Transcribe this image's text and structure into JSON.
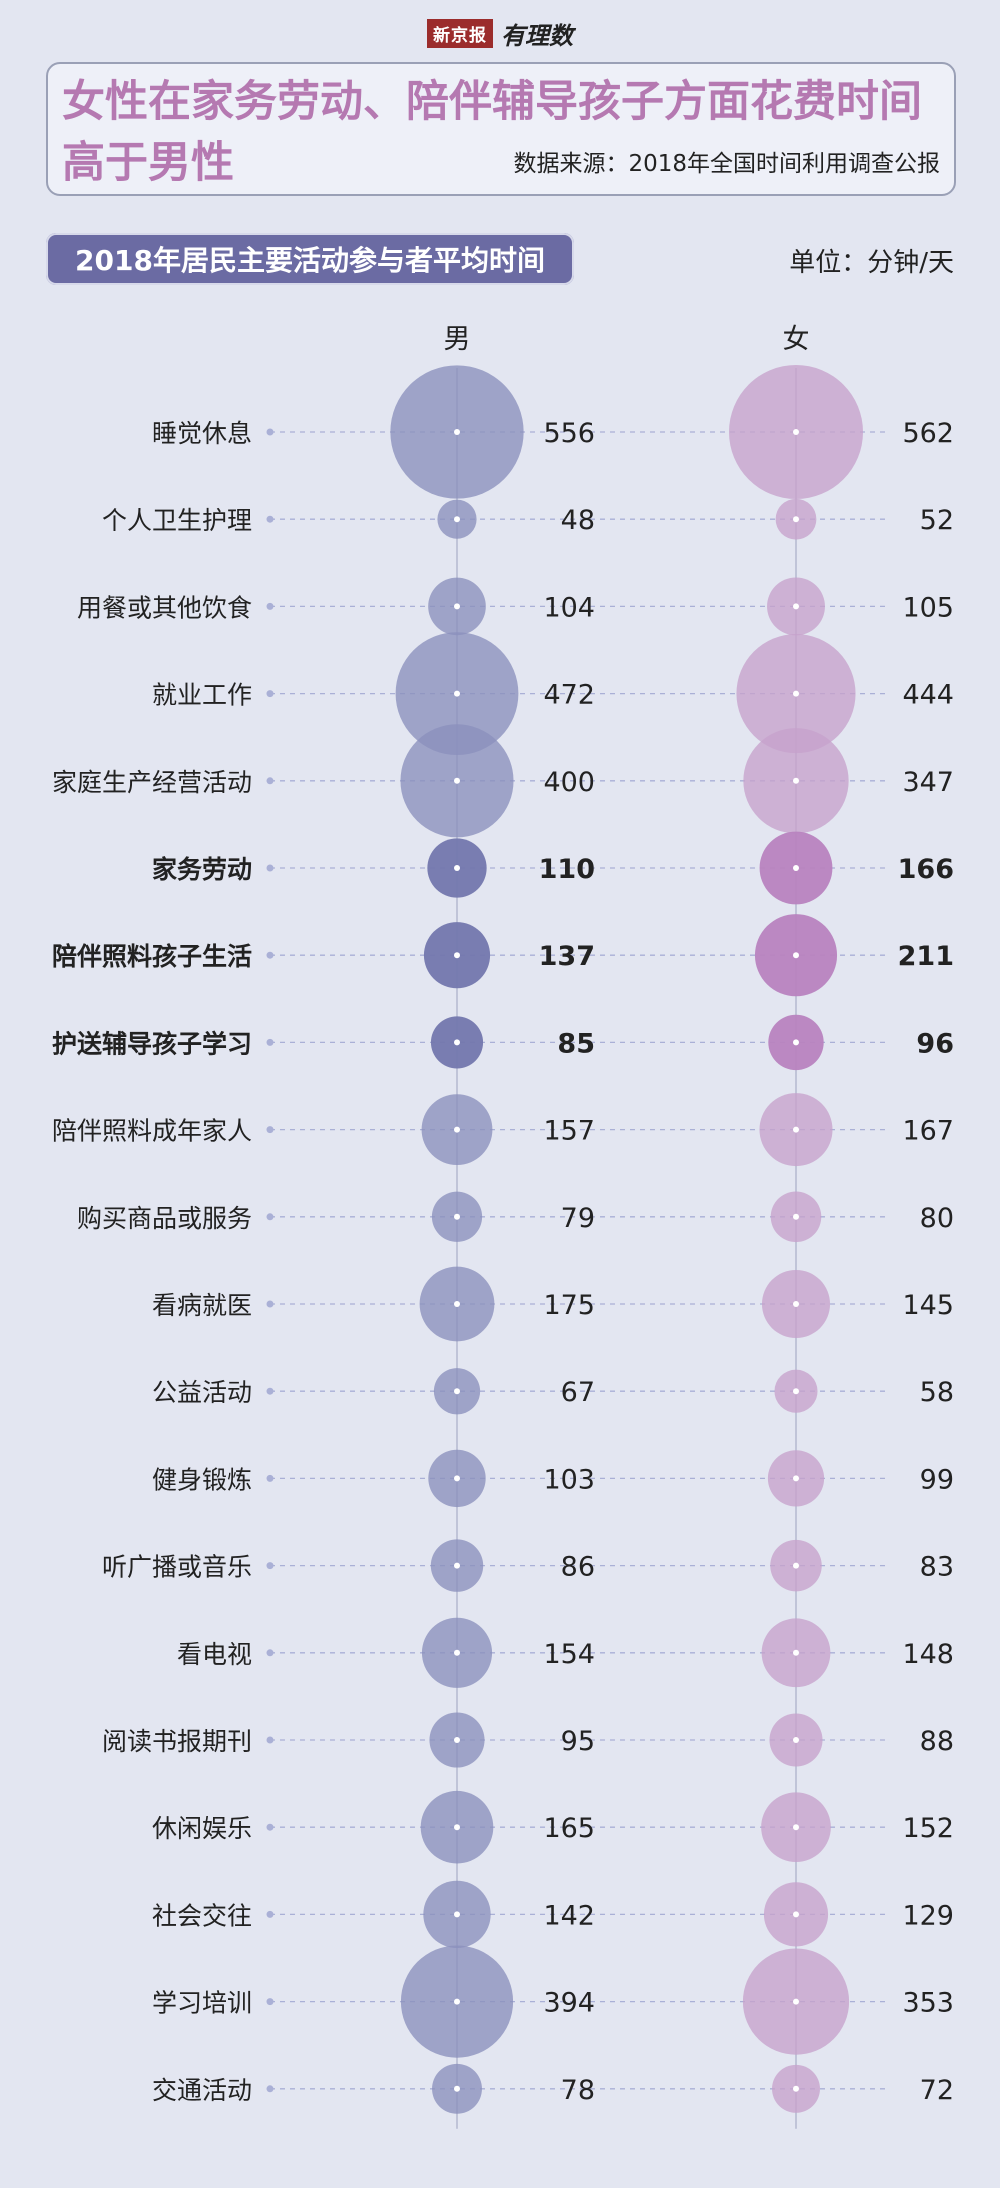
{
  "logo": {
    "brand": "新京报",
    "sub": "有理数"
  },
  "title": "女性在家务劳动、陪伴辅导孩子方面花费时间高于男性",
  "source": "数据来源：2018年全国时间利用调查公报",
  "subtitle": "2018年居民主要活动参与者平均时间",
  "unit": "单位：分钟/天",
  "colors": {
    "male": "#8a8fbd",
    "female": "#c6a2cc",
    "male_bold": "#7377ad",
    "female_bold": "#b883bf",
    "title": "#b579b1"
  },
  "chart_data": {
    "type": "bubble",
    "title": "2018年居民主要活动参与者平均时间",
    "unit": "分钟/天",
    "series_labels": [
      "男",
      "女"
    ],
    "categories": [
      "睡觉休息",
      "个人卫生护理",
      "用餐或其他饮食",
      "就业工作",
      "家庭生产经营活动",
      "家务劳动",
      "陪伴照料孩子生活",
      "护送辅导孩子学习",
      "陪伴照料成年家人",
      "购买商品或服务",
      "看病就医",
      "公益活动",
      "健身锻炼",
      "听广播或音乐",
      "看电视",
      "阅读书报期刊",
      "休闲娱乐",
      "社会交往",
      "学习培训",
      "交通活动"
    ],
    "series": [
      {
        "name": "男",
        "values": [
          556,
          48,
          104,
          472,
          400,
          110,
          137,
          85,
          157,
          79,
          175,
          67,
          103,
          86,
          154,
          95,
          165,
          142,
          394,
          78
        ]
      },
      {
        "name": "女",
        "values": [
          562,
          52,
          105,
          444,
          347,
          166,
          211,
          96,
          167,
          80,
          145,
          58,
          99,
          83,
          148,
          88,
          152,
          129,
          353,
          72
        ]
      }
    ],
    "highlighted": [
      "家务劳动",
      "陪伴照料孩子生活",
      "护送辅导孩子学习"
    ]
  }
}
